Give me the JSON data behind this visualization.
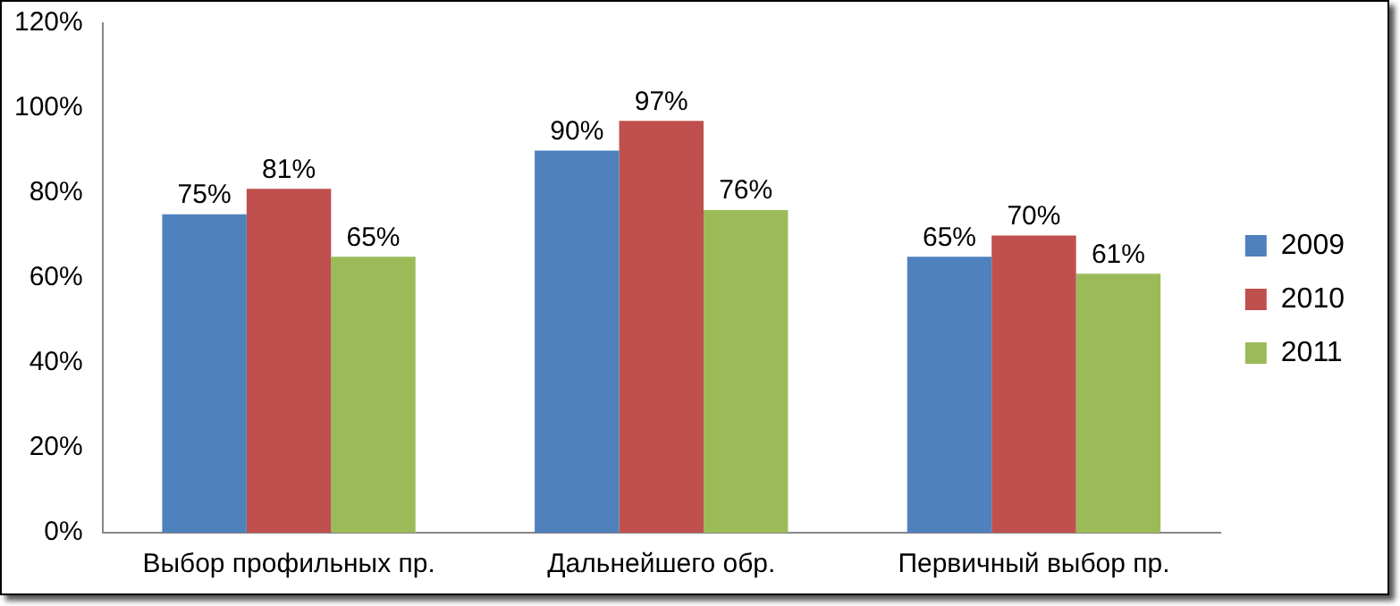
{
  "chart_data": {
    "type": "bar",
    "categories": [
      "Выбор профильных пр.",
      "Дальнейшего обр.",
      "Первичный выбор пр."
    ],
    "series": [
      {
        "name": "2009",
        "color": "#4f81bd",
        "values": [
          75,
          90,
          65
        ],
        "value_labels": [
          "75%",
          "90%",
          "65%"
        ]
      },
      {
        "name": "2010",
        "color": "#c0504d",
        "values": [
          81,
          97,
          70
        ],
        "value_labels": [
          "81%",
          "97%",
          "70%"
        ]
      },
      {
        "name": "2011",
        "color": "#9bbb59",
        "values": [
          65,
          76,
          61
        ],
        "value_labels": [
          "65%",
          "76%",
          "61%"
        ]
      }
    ],
    "ylim": [
      0,
      120
    ],
    "yticks": [
      {
        "value": 0,
        "label": "0%"
      },
      {
        "value": 20,
        "label": "20%"
      },
      {
        "value": 40,
        "label": "40%"
      },
      {
        "value": 60,
        "label": "60%"
      },
      {
        "value": 80,
        "label": "80%"
      },
      {
        "value": 100,
        "label": "100%"
      },
      {
        "value": 120,
        "label": "120%"
      }
    ],
    "grid": false,
    "legend": "right"
  }
}
